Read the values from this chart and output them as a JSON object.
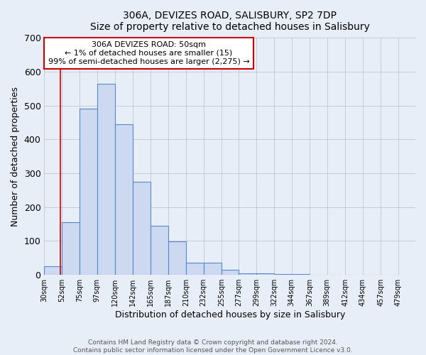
{
  "title": "306A, DEVIZES ROAD, SALISBURY, SP2 7DP",
  "subtitle": "Size of property relative to detached houses in Salisbury",
  "xlabel": "Distribution of detached houses by size in Salisbury",
  "ylabel": "Number of detached properties",
  "bin_edges": [
    30,
    52,
    75,
    97,
    120,
    142,
    165,
    187,
    210,
    232,
    255,
    277,
    299,
    322,
    344,
    367,
    389,
    412,
    434,
    457,
    479
  ],
  "bar_heights": [
    25,
    155,
    490,
    565,
    445,
    275,
    145,
    98,
    35,
    35,
    15,
    5,
    5,
    2,
    2,
    1,
    1,
    1,
    1,
    1
  ],
  "bar_color": "#ccd9f0",
  "bar_edgecolor": "#5588cc",
  "property_size": 50,
  "property_line_color": "#cc0000",
  "annotation_line1": "306A DEVIZES ROAD: 50sqm",
  "annotation_line2": "← 1% of detached houses are smaller (15)",
  "annotation_line3": "99% of semi-detached houses are larger (2,275) →",
  "annotation_box_color": "#ffffff",
  "annotation_box_edgecolor": "#cc0000",
  "ylim": [
    0,
    700
  ],
  "yticks": [
    0,
    100,
    200,
    300,
    400,
    500,
    600,
    700
  ],
  "background_color": "#e8eef8",
  "footer_line1": "Contains HM Land Registry data © Crown copyright and database right 2024.",
  "footer_line2": "Contains public sector information licensed under the Open Government Licence v3.0."
}
